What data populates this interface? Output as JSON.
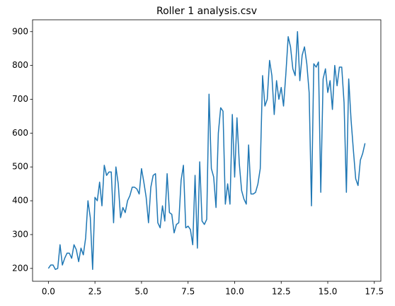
{
  "chart_data": {
    "type": "line",
    "title": "Roller 1 analysis.csv",
    "x": [
      0,
      0.125,
      0.25,
      0.375,
      0.5,
      0.625,
      0.75,
      0.875,
      1,
      1.125,
      1.25,
      1.375,
      1.5,
      1.625,
      1.75,
      1.875,
      2,
      2.125,
      2.25,
      2.375,
      2.5,
      2.625,
      2.75,
      2.875,
      3,
      3.125,
      3.25,
      3.375,
      3.5,
      3.625,
      3.75,
      3.875,
      4,
      4.125,
      4.25,
      4.375,
      4.5,
      4.625,
      4.75,
      4.875,
      5,
      5.125,
      5.25,
      5.375,
      5.5,
      5.625,
      5.75,
      5.875,
      6,
      6.125,
      6.25,
      6.375,
      6.5,
      6.625,
      6.75,
      6.875,
      7,
      7.125,
      7.25,
      7.375,
      7.5,
      7.625,
      7.75,
      7.875,
      8,
      8.125,
      8.25,
      8.375,
      8.5,
      8.625,
      8.75,
      8.875,
      9,
      9.125,
      9.25,
      9.375,
      9.5,
      9.625,
      9.75,
      9.875,
      10,
      10.125,
      10.25,
      10.375,
      10.5,
      10.625,
      10.75,
      10.875,
      11,
      11.125,
      11.25,
      11.375,
      11.5,
      11.625,
      11.75,
      11.875,
      12,
      12.125,
      12.25,
      12.375,
      12.5,
      12.625,
      12.75,
      12.875,
      13,
      13.125,
      13.25,
      13.375,
      13.5,
      13.625,
      13.75,
      13.875,
      14,
      14.125,
      14.25,
      14.375,
      14.5,
      14.625,
      14.75,
      14.875,
      15,
      15.125,
      15.25,
      15.375,
      15.5,
      15.625,
      15.75,
      15.875,
      16,
      16.125,
      16.25,
      16.375,
      16.5,
      16.625,
      16.75,
      16.875,
      17
    ],
    "series": [
      {
        "color": "#1f77b4",
        "values": [
          200,
          210,
          210,
          197,
          200,
          270,
          210,
          230,
          245,
          245,
          230,
          270,
          255,
          220,
          260,
          240,
          290,
          400,
          350,
          197,
          410,
          400,
          455,
          385,
          505,
          475,
          485,
          485,
          335,
          500,
          450,
          350,
          380,
          365,
          400,
          415,
          440,
          440,
          435,
          420,
          495,
          455,
          410,
          335,
          440,
          475,
          480,
          335,
          320,
          385,
          340,
          480,
          365,
          360,
          305,
          330,
          335,
          460,
          505,
          320,
          325,
          315,
          270,
          475,
          260,
          515,
          340,
          330,
          345,
          715,
          495,
          470,
          380,
          600,
          675,
          665,
          390,
          450,
          390,
          655,
          470,
          645,
          510,
          430,
          405,
          390,
          565,
          420,
          420,
          425,
          450,
          495,
          770,
          680,
          700,
          815,
          770,
          655,
          755,
          700,
          735,
          680,
          775,
          885,
          855,
          790,
          770,
          900,
          755,
          830,
          855,
          805,
          720,
          385,
          805,
          795,
          810,
          425,
          760,
          790,
          720,
          755,
          670,
          800,
          740,
          795,
          795,
          690,
          425,
          760,
          640,
          550,
          465,
          445,
          520,
          540,
          570
        ]
      }
    ],
    "xlim": [
      -0.85,
      17.85
    ],
    "xticks": [
      {
        "value": 0,
        "label": "0.0"
      },
      2.5,
      {
        "value": 5,
        "label": "5.0"
      },
      7.5,
      {
        "value": 10,
        "label": "10.0"
      },
      12.5,
      {
        "value": 15,
        "label": "15.0"
      },
      17.5
    ],
    "ylim": [
      162,
      935
    ],
    "yticks": [
      200,
      300,
      400,
      500,
      600,
      700,
      800,
      900
    ]
  }
}
